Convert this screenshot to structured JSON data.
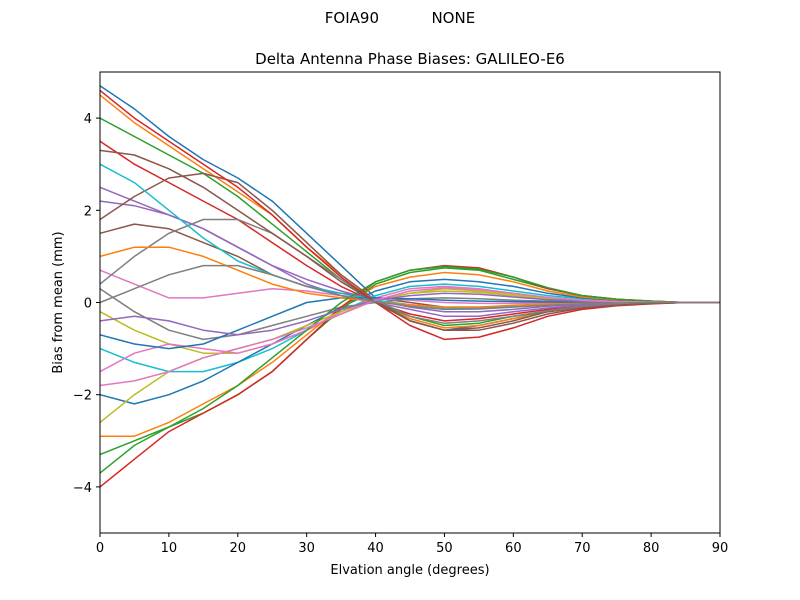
{
  "figure": {
    "suptitle": "FOIA90           NONE"
  },
  "chart_data": {
    "type": "line",
    "title": "Delta Antenna Phase Biases: GALILEO-E6",
    "xlabel": "Elvation angle (degrees)",
    "ylabel": "Bias from mean (mm)",
    "xlim": [
      0,
      90
    ],
    "ylim": [
      -5,
      5
    ],
    "xticks": [
      0,
      10,
      20,
      30,
      40,
      50,
      60,
      70,
      80,
      90
    ],
    "yticks": [
      -4,
      -2,
      0,
      2,
      4
    ],
    "ytick_labels": [
      "−4",
      "−2",
      "0",
      "2",
      "4"
    ],
    "grid": false,
    "legend": "none",
    "x": [
      0,
      5,
      10,
      15,
      20,
      25,
      30,
      35,
      40,
      45,
      50,
      55,
      60,
      65,
      70,
      75,
      80,
      85,
      90
    ],
    "series": [
      {
        "values": [
          4.7,
          4.2,
          3.6,
          3.1,
          2.7,
          2.2,
          1.5,
          0.8,
          0.1,
          -0.4,
          -0.6,
          -0.5,
          -0.35,
          -0.2,
          -0.1,
          -0.05,
          -0.02,
          0,
          0
        ]
      },
      {
        "values": [
          4.5,
          3.9,
          3.4,
          2.9,
          2.4,
          1.9,
          1.2,
          0.6,
          0.05,
          -0.35,
          -0.55,
          -0.5,
          -0.35,
          -0.2,
          -0.1,
          -0.05,
          -0.02,
          0,
          0
        ]
      },
      {
        "values": [
          4.0,
          3.6,
          3.2,
          2.8,
          2.3,
          1.7,
          1.1,
          0.5,
          0.0,
          -0.3,
          -0.5,
          -0.45,
          -0.3,
          -0.2,
          -0.1,
          -0.05,
          -0.02,
          0,
          0
        ]
      },
      {
        "values": [
          3.5,
          3.0,
          2.6,
          2.2,
          1.8,
          1.3,
          0.8,
          0.35,
          0.0,
          -0.25,
          -0.4,
          -0.35,
          -0.25,
          -0.15,
          -0.08,
          -0.04,
          -0.02,
          0,
          0
        ]
      },
      {
        "values": [
          2.5,
          2.2,
          1.9,
          1.6,
          1.2,
          0.8,
          0.4,
          0.15,
          0.0,
          -0.15,
          -0.3,
          -0.3,
          -0.2,
          -0.12,
          -0.06,
          -0.03,
          -0.01,
          0,
          0
        ]
      },
      {
        "values": [
          1.5,
          1.7,
          1.6,
          1.3,
          1.0,
          0.6,
          0.35,
          0.2,
          0.1,
          0.0,
          -0.1,
          -0.1,
          -0.08,
          -0.05,
          -0.03,
          -0.02,
          -0.01,
          0,
          0
        ]
      },
      {
        "values": [
          0.7,
          0.4,
          0.1,
          0.1,
          0.2,
          0.3,
          0.25,
          0.15,
          0.08,
          0.05,
          0.0,
          -0.02,
          -0.02,
          -0.01,
          0,
          0,
          0,
          0,
          0
        ]
      },
      {
        "values": [
          0.3,
          -0.2,
          -0.6,
          -0.8,
          -0.7,
          -0.5,
          -0.3,
          -0.1,
          0.0,
          0.08,
          0.1,
          0.08,
          0.05,
          0.03,
          0.02,
          0.01,
          0,
          0,
          0
        ]
      },
      {
        "values": [
          -0.2,
          -0.6,
          -0.9,
          -1.1,
          -1.1,
          -0.9,
          -0.6,
          -0.25,
          0.05,
          0.2,
          0.25,
          0.22,
          0.15,
          0.08,
          0.04,
          0.02,
          0.01,
          0,
          0
        ]
      },
      {
        "values": [
          -1.0,
          -1.3,
          -1.5,
          -1.5,
          -1.3,
          -1.0,
          -0.6,
          -0.2,
          0.15,
          0.35,
          0.4,
          0.35,
          0.25,
          0.15,
          0.08,
          0.04,
          0.02,
          0,
          0
        ]
      },
      {
        "values": [
          -2.0,
          -2.2,
          -2.0,
          -1.7,
          -1.3,
          -0.9,
          -0.5,
          -0.1,
          0.25,
          0.45,
          0.5,
          0.45,
          0.35,
          0.2,
          0.1,
          0.05,
          0.02,
          0,
          0
        ]
      },
      {
        "values": [
          -2.9,
          -2.9,
          -2.6,
          -2.2,
          -1.8,
          -1.3,
          -0.7,
          -0.1,
          0.35,
          0.55,
          0.65,
          0.6,
          0.45,
          0.25,
          0.12,
          0.06,
          0.03,
          0,
          0
        ]
      },
      {
        "values": [
          -3.3,
          -3.0,
          -2.7,
          -2.4,
          -2.0,
          -1.5,
          -0.8,
          -0.15,
          0.4,
          0.65,
          0.75,
          0.7,
          0.5,
          0.3,
          0.15,
          0.07,
          0.03,
          0,
          0
        ]
      },
      {
        "values": [
          -4.0,
          -3.4,
          -2.8,
          -2.4,
          -2.0,
          -1.5,
          -0.8,
          -0.1,
          0.45,
          0.7,
          0.8,
          0.75,
          0.55,
          0.3,
          0.15,
          0.07,
          0.03,
          0,
          0
        ]
      },
      {
        "values": [
          2.2,
          2.1,
          1.9,
          1.6,
          1.2,
          0.8,
          0.5,
          0.25,
          0.05,
          -0.1,
          -0.2,
          -0.2,
          -0.15,
          -0.08,
          -0.04,
          -0.02,
          -0.01,
          0,
          0
        ]
      },
      {
        "values": [
          1.8,
          2.3,
          2.7,
          2.8,
          2.6,
          2.0,
          1.3,
          0.6,
          0.05,
          -0.4,
          -0.6,
          -0.55,
          -0.4,
          -0.2,
          -0.1,
          -0.05,
          -0.02,
          0,
          0
        ]
      },
      {
        "values": [
          -1.5,
          -1.1,
          -0.9,
          -1.0,
          -1.1,
          -0.9,
          -0.6,
          -0.2,
          0.1,
          0.3,
          0.35,
          0.3,
          0.2,
          0.1,
          0.05,
          0.02,
          0.01,
          0,
          0
        ]
      },
      {
        "values": [
          0.4,
          1.0,
          1.5,
          1.8,
          1.8,
          1.5,
          1.0,
          0.5,
          0.05,
          -0.3,
          -0.45,
          -0.4,
          -0.3,
          -0.18,
          -0.09,
          -0.04,
          -0.02,
          0,
          0
        ]
      },
      {
        "values": [
          -2.6,
          -2.0,
          -1.5,
          -1.2,
          -1.0,
          -0.8,
          -0.5,
          -0.2,
          0.05,
          0.2,
          0.3,
          0.25,
          0.18,
          0.1,
          0.05,
          0.02,
          0.01,
          0,
          0
        ]
      },
      {
        "values": [
          3.0,
          2.6,
          2.0,
          1.4,
          0.9,
          0.6,
          0.35,
          0.2,
          0.05,
          -0.05,
          -0.12,
          -0.12,
          -0.08,
          -0.05,
          -0.02,
          -0.01,
          0,
          0,
          0
        ]
      },
      {
        "values": [
          -0.7,
          -0.9,
          -1.0,
          -0.9,
          -0.6,
          -0.3,
          0.0,
          0.1,
          0.1,
          0.08,
          0.05,
          0.03,
          0.02,
          0.01,
          0,
          0,
          0,
          0,
          0
        ]
      },
      {
        "values": [
          1.0,
          1.2,
          1.2,
          1.0,
          0.7,
          0.4,
          0.2,
          0.1,
          0.02,
          -0.05,
          -0.1,
          -0.1,
          -0.06,
          -0.03,
          -0.02,
          -0.01,
          0,
          0,
          0
        ]
      },
      {
        "values": [
          -3.7,
          -3.1,
          -2.7,
          -2.3,
          -1.8,
          -1.2,
          -0.6,
          0.0,
          0.45,
          0.7,
          0.78,
          0.72,
          0.55,
          0.32,
          0.15,
          0.07,
          0.03,
          0,
          0
        ]
      },
      {
        "values": [
          4.6,
          4.0,
          3.5,
          3.0,
          2.5,
          1.9,
          1.2,
          0.55,
          0.0,
          -0.5,
          -0.8,
          -0.75,
          -0.55,
          -0.3,
          -0.15,
          -0.07,
          -0.03,
          0,
          0
        ]
      },
      {
        "values": [
          -0.4,
          -0.3,
          -0.4,
          -0.6,
          -0.7,
          -0.6,
          -0.4,
          -0.15,
          0.05,
          0.15,
          0.2,
          0.18,
          0.12,
          0.06,
          0.03,
          0.01,
          0,
          0,
          0
        ]
      },
      {
        "values": [
          3.3,
          3.2,
          2.9,
          2.5,
          2.0,
          1.5,
          1.0,
          0.45,
          0.0,
          -0.4,
          -0.6,
          -0.6,
          -0.45,
          -0.25,
          -0.12,
          -0.06,
          -0.02,
          0,
          0
        ]
      },
      {
        "values": [
          -1.8,
          -1.7,
          -1.5,
          -1.2,
          -1.0,
          -0.8,
          -0.55,
          -0.25,
          0.05,
          0.25,
          0.32,
          0.28,
          0.2,
          0.11,
          0.05,
          0.02,
          0.01,
          0,
          0
        ]
      },
      {
        "values": [
          0.0,
          0.3,
          0.6,
          0.8,
          0.8,
          0.6,
          0.35,
          0.15,
          0.02,
          -0.08,
          -0.15,
          -0.14,
          -0.1,
          -0.06,
          -0.03,
          -0.01,
          0,
          0,
          0
        ]
      }
    ]
  }
}
